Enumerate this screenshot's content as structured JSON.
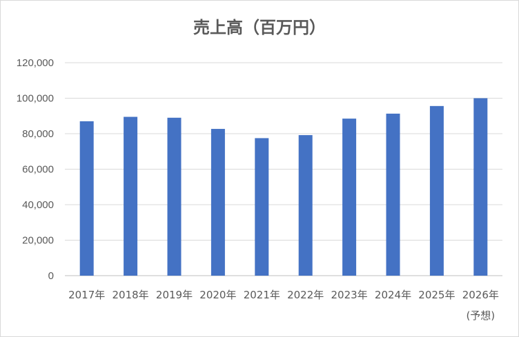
{
  "chart_data": {
    "type": "bar",
    "title": "売上高（百万円）",
    "categories": [
      "2017年",
      "2018年",
      "2019年",
      "2020年",
      "2021年",
      "2022年",
      "2023年",
      "2024年",
      "2025年",
      "2026年"
    ],
    "category_sublabels": [
      "",
      "",
      "",
      "",
      "",
      "",
      "",
      "",
      "",
      "(予想)"
    ],
    "values": [
      87000,
      89500,
      89000,
      82700,
      77500,
      79200,
      88500,
      91300,
      95600,
      100000
    ],
    "ylim": [
      0,
      120000
    ],
    "yticks": [
      0,
      20000,
      40000,
      60000,
      80000,
      100000,
      120000
    ],
    "ytick_labels": [
      "0",
      "20,000",
      "40,000",
      "60,000",
      "80,000",
      "100,000",
      "120,000"
    ],
    "xlabel": "",
    "ylabel": "",
    "grid": true,
    "bar_color": "#4472c4",
    "grid_color": "#d9d9d9"
  }
}
